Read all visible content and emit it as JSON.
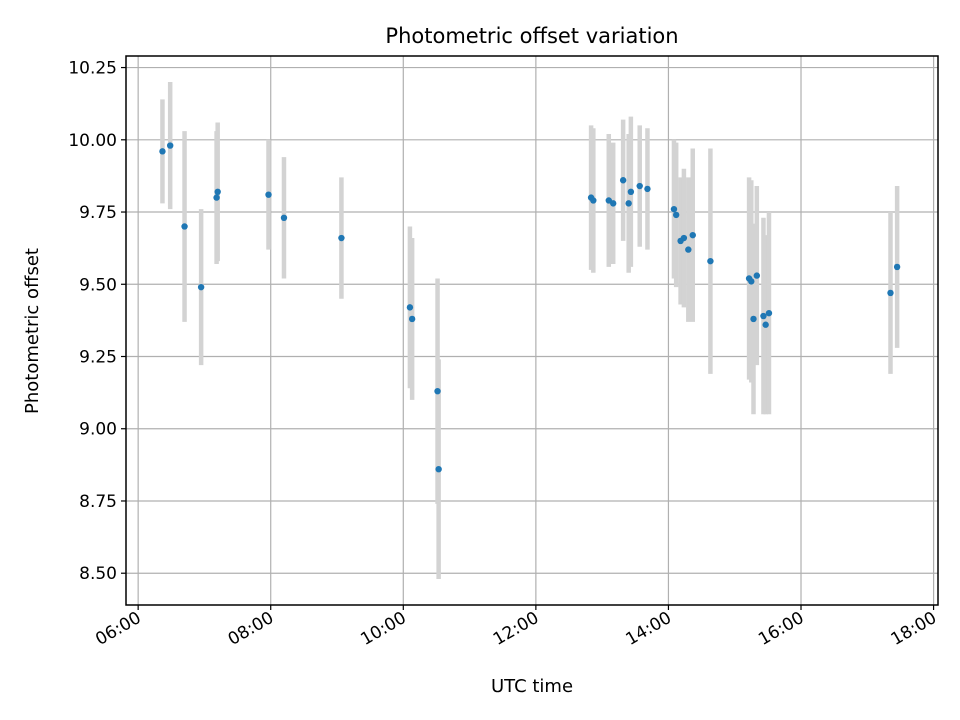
{
  "chart_data": {
    "type": "scatter",
    "title": "Photometric offset variation",
    "xlabel": "UTC time",
    "ylabel": "Photometric offset",
    "x_unit": "hours UTC",
    "xlim": [
      "05:49",
      "18:04"
    ],
    "ylim": [
      8.39,
      10.29
    ],
    "x_ticks": [
      "06:00",
      "08:00",
      "10:00",
      "12:00",
      "14:00",
      "16:00",
      "18:00"
    ],
    "y_ticks": [
      "8.50",
      "8.75",
      "9.00",
      "9.25",
      "9.50",
      "9.75",
      "10.00",
      "10.25"
    ],
    "grid": true,
    "colors": {
      "points": "#1f77b4",
      "errorbars": "#d3d3d3",
      "grid": "#b0b0b0"
    },
    "points": [
      {
        "t": "06:22",
        "y": 9.96,
        "err": 0.18
      },
      {
        "t": "06:29",
        "y": 9.98,
        "err": 0.22
      },
      {
        "t": "06:42",
        "y": 9.7,
        "err": 0.33
      },
      {
        "t": "06:57",
        "y": 9.49,
        "err": 0.27
      },
      {
        "t": "07:11",
        "y": 9.8,
        "err": 0.23
      },
      {
        "t": "07:12",
        "y": 9.82,
        "err": 0.24
      },
      {
        "t": "07:58",
        "y": 9.81,
        "err": 0.19
      },
      {
        "t": "08:12",
        "y": 9.73,
        "err": 0.21
      },
      {
        "t": "09:04",
        "y": 9.66,
        "err": 0.21
      },
      {
        "t": "10:06",
        "y": 9.42,
        "err": 0.28
      },
      {
        "t": "10:08",
        "y": 9.38,
        "err": 0.28
      },
      {
        "t": "10:31",
        "y": 9.13,
        "err": 0.39
      },
      {
        "t": "10:32",
        "y": 8.86,
        "err": 0.38
      },
      {
        "t": "12:50",
        "y": 9.8,
        "err": 0.25
      },
      {
        "t": "12:52",
        "y": 9.79,
        "err": 0.25
      },
      {
        "t": "13:06",
        "y": 9.79,
        "err": 0.23
      },
      {
        "t": "13:10",
        "y": 9.78,
        "err": 0.21
      },
      {
        "t": "13:19",
        "y": 9.86,
        "err": 0.21
      },
      {
        "t": "13:24",
        "y": 9.78,
        "err": 0.24
      },
      {
        "t": "13:26",
        "y": 9.82,
        "err": 0.26
      },
      {
        "t": "13:34",
        "y": 9.84,
        "err": 0.21
      },
      {
        "t": "13:41",
        "y": 9.83,
        "err": 0.21
      },
      {
        "t": "14:05",
        "y": 9.76,
        "err": 0.24
      },
      {
        "t": "14:07",
        "y": 9.74,
        "err": 0.25
      },
      {
        "t": "14:11",
        "y": 9.65,
        "err": 0.22
      },
      {
        "t": "14:14",
        "y": 9.66,
        "err": 0.24
      },
      {
        "t": "14:18",
        "y": 9.62,
        "err": 0.25
      },
      {
        "t": "14:22",
        "y": 9.67,
        "err": 0.3
      },
      {
        "t": "14:38",
        "y": 9.58,
        "err": 0.39
      },
      {
        "t": "15:13",
        "y": 9.52,
        "err": 0.35
      },
      {
        "t": "15:15",
        "y": 9.51,
        "err": 0.35
      },
      {
        "t": "15:17",
        "y": 9.38,
        "err": 0.33
      },
      {
        "t": "15:20",
        "y": 9.53,
        "err": 0.31
      },
      {
        "t": "15:26",
        "y": 9.39,
        "err": 0.34
      },
      {
        "t": "15:28",
        "y": 9.36,
        "err": 0.31
      },
      {
        "t": "15:31",
        "y": 9.4,
        "err": 0.35
      },
      {
        "t": "17:21",
        "y": 9.47,
        "err": 0.28
      },
      {
        "t": "17:27",
        "y": 9.56,
        "err": 0.28
      }
    ]
  }
}
